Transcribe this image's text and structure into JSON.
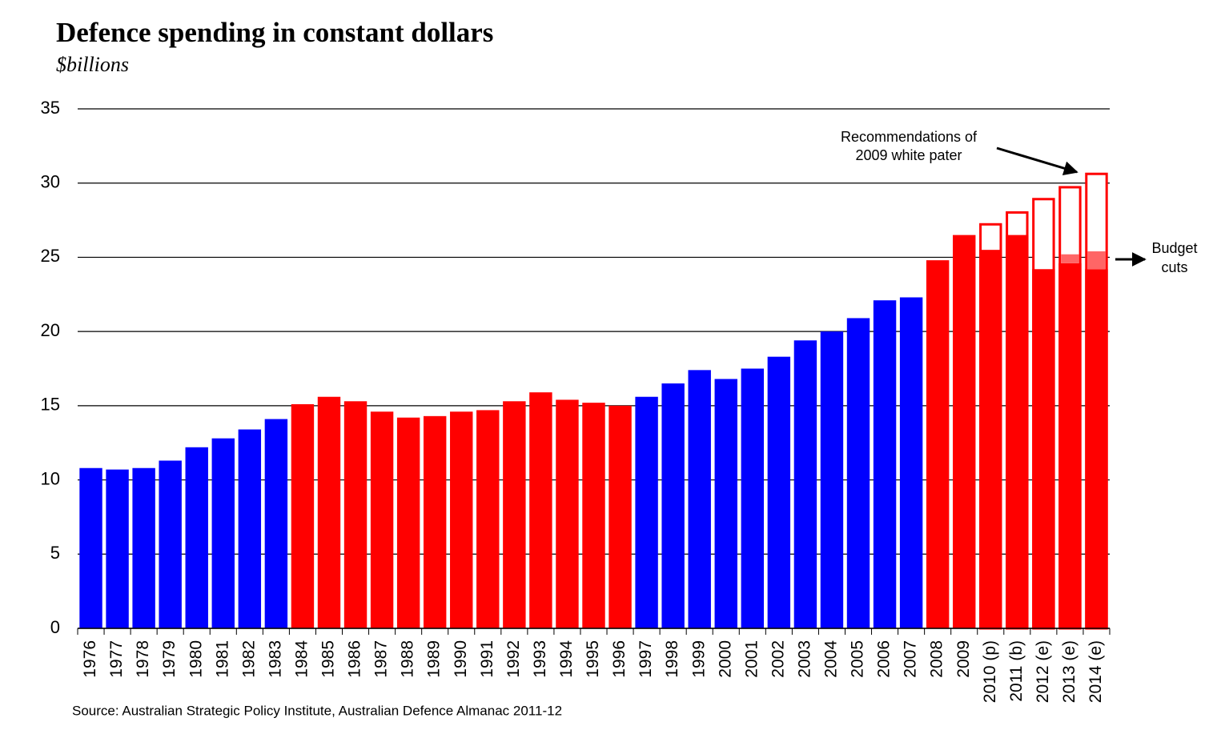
{
  "chart_data": {
    "type": "bar",
    "title": "Defence spending in constant dollars",
    "subtitle": "$billions",
    "source": "Source: Australian Strategic Policy Institute, Australian Defence Almanac 2011-12",
    "categories": [
      "1976",
      "1977",
      "1978",
      "1979",
      "1980",
      "1981",
      "1982",
      "1983",
      "1984",
      "1985",
      "1986",
      "1987",
      "1988",
      "1989",
      "1990",
      "1991",
      "1992",
      "1993",
      "1994",
      "1995",
      "1996",
      "1997",
      "1998",
      "1999",
      "2000",
      "2001",
      "2002",
      "2003",
      "2004",
      "2005",
      "2006",
      "2007",
      "2008",
      "2009",
      "2010 (p)",
      "2011 (b)",
      "2012 (e)",
      "2013 (e)",
      "2014 (e)"
    ],
    "values": [
      10.8,
      10.7,
      10.8,
      11.3,
      12.2,
      12.8,
      13.4,
      14.1,
      15.1,
      15.6,
      15.3,
      14.6,
      14.2,
      14.3,
      14.6,
      14.7,
      15.3,
      15.9,
      15.4,
      15.2,
      15.0,
      15.6,
      16.5,
      17.4,
      16.8,
      17.5,
      18.3,
      19.4,
      20.0,
      20.9,
      22.1,
      22.3,
      24.8,
      26.5,
      25.5,
      26.5,
      24.2,
      24.6,
      24.2
    ],
    "colors": [
      "#0000ff",
      "#0000ff",
      "#0000ff",
      "#0000ff",
      "#0000ff",
      "#0000ff",
      "#0000ff",
      "#0000ff",
      "#ff0000",
      "#ff0000",
      "#ff0000",
      "#ff0000",
      "#ff0000",
      "#ff0000",
      "#ff0000",
      "#ff0000",
      "#ff0000",
      "#ff0000",
      "#ff0000",
      "#ff0000",
      "#ff0000",
      "#0000ff",
      "#0000ff",
      "#0000ff",
      "#0000ff",
      "#0000ff",
      "#0000ff",
      "#0000ff",
      "#0000ff",
      "#0000ff",
      "#0000ff",
      "#0000ff",
      "#ff0000",
      "#ff0000",
      "#ff0000",
      "#ff0000",
      "#ff0000",
      "#ff0000",
      "#ff0000"
    ],
    "white_paper_values": [
      null,
      null,
      null,
      null,
      null,
      null,
      null,
      null,
      null,
      null,
      null,
      null,
      null,
      null,
      null,
      null,
      null,
      null,
      null,
      null,
      null,
      null,
      null,
      null,
      null,
      null,
      null,
      null,
      null,
      null,
      null,
      null,
      null,
      null,
      27.3,
      28.1,
      29.0,
      29.8,
      30.7
    ],
    "white_paper_color": "#ff0000",
    "prior_budget_values": [
      null,
      null,
      null,
      null,
      null,
      null,
      null,
      null,
      null,
      null,
      null,
      null,
      null,
      null,
      null,
      null,
      null,
      null,
      null,
      null,
      null,
      null,
      null,
      null,
      null,
      null,
      null,
      null,
      null,
      null,
      null,
      null,
      null,
      null,
      null,
      null,
      null,
      25.2,
      25.4
    ],
    "prior_budget_color": "#ff6666",
    "annotations": [
      [
        "Recommendations of",
        "2009 white pater"
      ],
      [
        "Budget",
        "cuts"
      ]
    ],
    "ylim": [
      0,
      35
    ],
    "yticks": [
      0,
      5,
      10,
      15,
      20,
      25,
      30,
      35
    ],
    "grid": true
  }
}
